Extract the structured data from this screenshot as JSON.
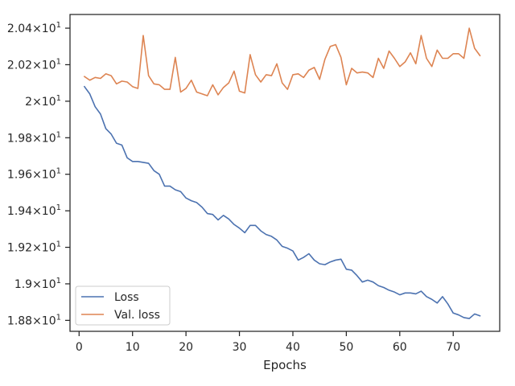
{
  "chart_data": {
    "type": "line",
    "title": "",
    "xlabel": "Epochs",
    "ylabel": "",
    "xlim": [
      -1.7,
      78.7
    ],
    "ylim": [
      18.74,
      20.475
    ],
    "grid": false,
    "legend_position": "lower-left",
    "x_ticks": [
      {
        "value": 0,
        "label": "0"
      },
      {
        "value": 10,
        "label": "10"
      },
      {
        "value": 20,
        "label": "20"
      },
      {
        "value": 30,
        "label": "30"
      },
      {
        "value": 40,
        "label": "40"
      },
      {
        "value": 50,
        "label": "50"
      },
      {
        "value": 60,
        "label": "60"
      },
      {
        "value": 70,
        "label": "70"
      }
    ],
    "y_ticks": [
      {
        "value": 18.8,
        "mantissa": "1.88",
        "exponent": "1"
      },
      {
        "value": 19.0,
        "mantissa": "1.9",
        "exponent": "1"
      },
      {
        "value": 19.2,
        "mantissa": "1.92",
        "exponent": "1"
      },
      {
        "value": 19.4,
        "mantissa": "1.94",
        "exponent": "1"
      },
      {
        "value": 19.6,
        "mantissa": "1.96",
        "exponent": "1"
      },
      {
        "value": 19.8,
        "mantissa": "1.98",
        "exponent": "1"
      },
      {
        "value": 20.0,
        "mantissa": "2",
        "exponent": "1"
      },
      {
        "value": 20.2,
        "mantissa": "2.02",
        "exponent": "1"
      },
      {
        "value": 20.4,
        "mantissa": "2.04",
        "exponent": "1"
      }
    ],
    "x": [
      1,
      2,
      3,
      4,
      5,
      6,
      7,
      8,
      9,
      10,
      11,
      12,
      13,
      14,
      15,
      16,
      17,
      18,
      19,
      20,
      21,
      22,
      23,
      24,
      25,
      26,
      27,
      28,
      29,
      30,
      31,
      32,
      33,
      34,
      35,
      36,
      37,
      38,
      39,
      40,
      41,
      42,
      43,
      44,
      45,
      46,
      47,
      48,
      49,
      50,
      51,
      52,
      53,
      54,
      55,
      56,
      57,
      58,
      59,
      60,
      61,
      62,
      63,
      64,
      65,
      66,
      67,
      68,
      69,
      70,
      71,
      72,
      73,
      74,
      75
    ],
    "series": [
      {
        "name": "Loss",
        "color": "#4c72b0",
        "values": [
          20.08,
          20.04,
          19.97,
          19.93,
          19.85,
          19.82,
          19.77,
          19.76,
          19.69,
          19.67,
          19.67,
          19.665,
          19.66,
          19.62,
          19.6,
          19.535,
          19.535,
          19.515,
          19.505,
          19.47,
          19.455,
          19.445,
          19.42,
          19.385,
          19.38,
          19.35,
          19.375,
          19.355,
          19.325,
          19.305,
          19.28,
          19.32,
          19.32,
          19.29,
          19.27,
          19.26,
          19.24,
          19.205,
          19.195,
          19.18,
          19.13,
          19.145,
          19.165,
          19.13,
          19.11,
          19.105,
          19.12,
          19.13,
          19.135,
          19.08,
          19.075,
          19.045,
          19.01,
          19.02,
          19.01,
          18.99,
          18.98,
          18.965,
          18.955,
          18.94,
          18.95,
          18.95,
          18.945,
          18.96,
          18.93,
          18.915,
          18.895,
          18.93,
          18.89,
          18.84,
          18.83,
          18.815,
          18.81,
          18.835,
          18.825
        ]
      },
      {
        "name": "Val. loss",
        "color": "#dd8452",
        "values": [
          20.135,
          20.115,
          20.13,
          20.125,
          20.15,
          20.14,
          20.095,
          20.11,
          20.105,
          20.08,
          20.07,
          20.36,
          20.14,
          20.095,
          20.09,
          20.065,
          20.065,
          20.24,
          20.05,
          20.07,
          20.115,
          20.05,
          20.04,
          20.03,
          20.09,
          20.035,
          20.075,
          20.1,
          20.165,
          20.055,
          20.045,
          20.255,
          20.145,
          20.105,
          20.145,
          20.14,
          20.205,
          20.1,
          20.065,
          20.145,
          20.15,
          20.13,
          20.17,
          20.185,
          20.12,
          20.23,
          20.3,
          20.31,
          20.24,
          20.09,
          20.18,
          20.155,
          20.16,
          20.155,
          20.13,
          20.235,
          20.18,
          20.275,
          20.235,
          20.19,
          20.215,
          20.265,
          20.205,
          20.36,
          20.235,
          20.19,
          20.28,
          20.235,
          20.235,
          20.26,
          20.26,
          20.235,
          20.4,
          20.29,
          20.25
        ]
      }
    ]
  }
}
